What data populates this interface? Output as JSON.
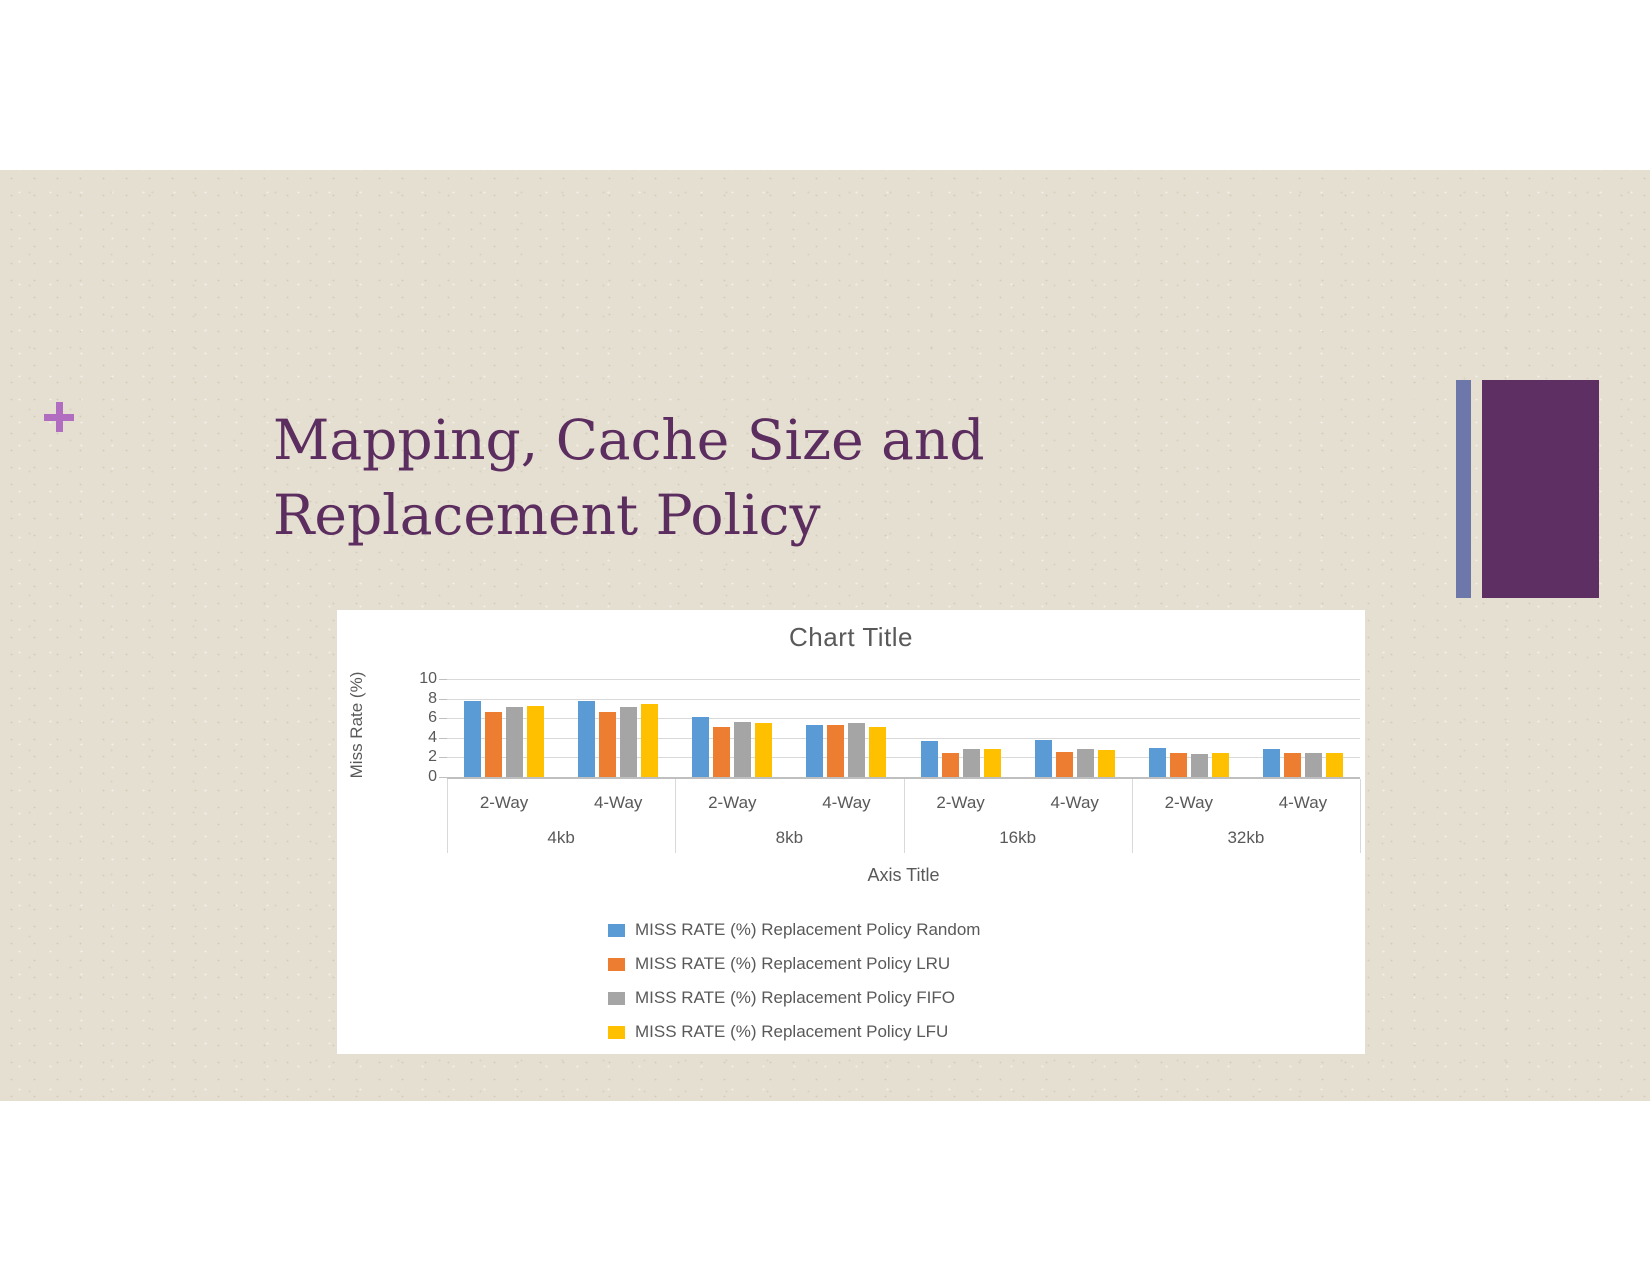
{
  "slide": {
    "title_lines": [
      "Mapping, Cache Size and",
      "Replacement Policy"
    ],
    "title_color": "#5c2d5f",
    "background_color": "#e5dfd1",
    "plus_color": "#b16dc0",
    "decoration_colors": {
      "thin_bar": "#6e77a9",
      "rectangle": "#5e2f62"
    }
  },
  "chart_data": {
    "type": "bar",
    "title": "Chart Title",
    "xlabel": "Axis Title",
    "ylabel": "Miss Rate (%)",
    "ylim": [
      0,
      10
    ],
    "yticks": [
      0,
      2,
      4,
      6,
      8,
      10
    ],
    "grid": true,
    "legend_position": "bottom-left",
    "group_labels": [
      "4kb",
      "8kb",
      "16kb",
      "32kb"
    ],
    "subgroup_labels": [
      "2-Way",
      "4-Way"
    ],
    "categories": [
      "4kb 2-Way",
      "4kb 4-Way",
      "8kb 2-Way",
      "8kb 4-Way",
      "16kb 2-Way",
      "16kb 4-Way",
      "32kb 2-Way",
      "32kb 4-Way"
    ],
    "series": [
      {
        "name": "MISS RATE (%) Replacement Policy Random",
        "color": "#5B9BD5",
        "values": [
          7.8,
          7.8,
          6.1,
          5.3,
          3.7,
          3.8,
          3.0,
          2.9
        ]
      },
      {
        "name": "MISS RATE (%) Replacement Policy LRU",
        "color": "#ED7D31",
        "values": [
          6.6,
          6.6,
          5.1,
          5.3,
          2.4,
          2.6,
          2.4,
          2.4
        ]
      },
      {
        "name": "MISS RATE (%) Replacement Policy FIFO",
        "color": "#A5A5A5",
        "values": [
          7.1,
          7.1,
          5.6,
          5.5,
          2.9,
          2.9,
          2.3,
          2.4
        ]
      },
      {
        "name": "MISS RATE (%) Replacement Policy LFU",
        "color": "#FFC000",
        "values": [
          7.2,
          7.4,
          5.5,
          5.1,
          2.9,
          2.8,
          2.4,
          2.4
        ]
      }
    ]
  }
}
